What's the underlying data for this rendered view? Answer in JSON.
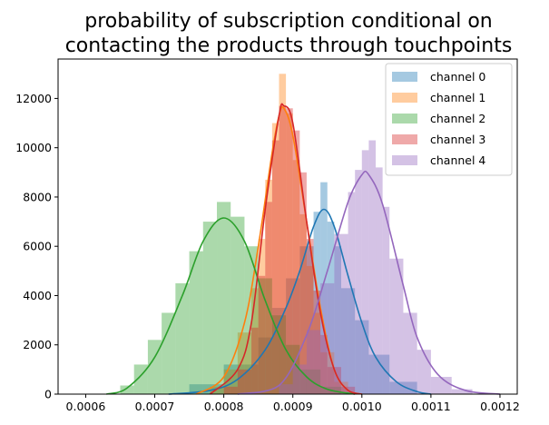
{
  "chart_data": {
    "type": "histogram",
    "title_lines": [
      "probability of subscription conditional on",
      "contacting the products through touchpoints"
    ],
    "xlabel": "",
    "ylabel": "",
    "xlim": [
      0.00056,
      0.001225
    ],
    "ylim": [
      0,
      13600
    ],
    "x_ticks": [
      0.0006,
      0.0007,
      0.0008,
      0.0009,
      0.001,
      0.0011,
      0.0012
    ],
    "x_tick_labels": [
      "0.0006",
      "0.0007",
      "0.0008",
      "0.0009",
      "0.0010",
      "0.0011",
      "0.0012"
    ],
    "y_ticks": [
      0,
      2000,
      4000,
      6000,
      8000,
      10000,
      12000
    ],
    "y_tick_labels": [
      "0",
      "2000",
      "4000",
      "6000",
      "8000",
      "10000",
      "12000"
    ],
    "grid": false,
    "legend_position": "top-right",
    "bar_opacity": 0.4,
    "series": [
      {
        "name": "channel 0",
        "color": "#1f77b4",
        "bins": [
          [
            0.00075,
            0.0008,
            400
          ],
          [
            0.0008,
            0.00085,
            1200
          ],
          [
            0.00085,
            0.00087,
            2300
          ],
          [
            0.00087,
            0.00089,
            3500
          ],
          [
            0.00089,
            0.00091,
            4700
          ],
          [
            0.00091,
            0.00093,
            6000
          ],
          [
            0.00093,
            0.00094,
            7400
          ],
          [
            0.00094,
            0.00095,
            8600
          ],
          [
            0.00095,
            0.00096,
            7000
          ],
          [
            0.00096,
            0.00097,
            6000
          ],
          [
            0.00097,
            0.00099,
            4300
          ],
          [
            0.00099,
            0.00101,
            3000
          ],
          [
            0.00101,
            0.00104,
            1600
          ],
          [
            0.00104,
            0.00108,
            500
          ]
        ],
        "kde": [
          [
            0.00072,
            0
          ],
          [
            0.00078,
            150
          ],
          [
            0.00082,
            600
          ],
          [
            0.00086,
            1800
          ],
          [
            0.00089,
            3500
          ],
          [
            0.00091,
            5000
          ],
          [
            0.00093,
            6800
          ],
          [
            0.000945,
            7500
          ],
          [
            0.00096,
            6800
          ],
          [
            0.00098,
            4800
          ],
          [
            0.001,
            2900
          ],
          [
            0.00102,
            1500
          ],
          [
            0.00105,
            500
          ],
          [
            0.00108,
            100
          ],
          [
            0.0011,
            0
          ]
        ]
      },
      {
        "name": "channel 1",
        "color": "#ff7f0e",
        "bins": [
          [
            0.00078,
            0.0008,
            300
          ],
          [
            0.0008,
            0.00082,
            1000
          ],
          [
            0.00082,
            0.00084,
            2500
          ],
          [
            0.00084,
            0.00085,
            4300
          ],
          [
            0.00085,
            0.00086,
            6300
          ],
          [
            0.00086,
            0.00087,
            8700
          ],
          [
            0.00087,
            0.00088,
            11000
          ],
          [
            0.00088,
            0.00089,
            13000
          ],
          [
            0.00089,
            0.0009,
            11400
          ],
          [
            0.0009,
            0.00091,
            9500
          ],
          [
            0.00091,
            0.00092,
            7300
          ],
          [
            0.00092,
            0.00093,
            5200
          ],
          [
            0.00093,
            0.00094,
            3300
          ],
          [
            0.00094,
            0.00096,
            1700
          ],
          [
            0.00096,
            0.00098,
            500
          ]
        ],
        "kde": [
          [
            0.00076,
            0
          ],
          [
            0.0008,
            700
          ],
          [
            0.00083,
            2900
          ],
          [
            0.00085,
            6000
          ],
          [
            0.00087,
            9800
          ],
          [
            0.00088,
            11300
          ],
          [
            0.000887,
            11600
          ],
          [
            0.0009,
            10500
          ],
          [
            0.00092,
            7000
          ],
          [
            0.00094,
            3500
          ],
          [
            0.00096,
            1000
          ],
          [
            0.00098,
            150
          ],
          [
            0.001,
            0
          ]
        ]
      },
      {
        "name": "channel 2",
        "color": "#2ca02c",
        "bins": [
          [
            0.00065,
            0.00067,
            350
          ],
          [
            0.00067,
            0.00069,
            1200
          ],
          [
            0.00069,
            0.00071,
            2200
          ],
          [
            0.00071,
            0.00073,
            3300
          ],
          [
            0.00073,
            0.00075,
            4500
          ],
          [
            0.00075,
            0.00077,
            5800
          ],
          [
            0.00077,
            0.00079,
            7000
          ],
          [
            0.00079,
            0.00081,
            7800
          ],
          [
            0.00081,
            0.00083,
            7200
          ],
          [
            0.00083,
            0.00085,
            6000
          ],
          [
            0.00085,
            0.00087,
            4700
          ],
          [
            0.00087,
            0.00089,
            3200
          ],
          [
            0.00089,
            0.00091,
            2000
          ],
          [
            0.00091,
            0.00094,
            1000
          ],
          [
            0.00094,
            0.00097,
            300
          ]
        ],
        "kde": [
          [
            0.00063,
            0
          ],
          [
            0.00066,
            250
          ],
          [
            0.0007,
            1500
          ],
          [
            0.00074,
            4000
          ],
          [
            0.00077,
            6200
          ],
          [
            0.0008,
            7150
          ],
          [
            0.00083,
            6200
          ],
          [
            0.00086,
            3800
          ],
          [
            0.00089,
            1800
          ],
          [
            0.00092,
            700
          ],
          [
            0.00095,
            200
          ],
          [
            0.00099,
            0
          ]
        ]
      },
      {
        "name": "channel 3",
        "color": "#d62728",
        "bins": [
          [
            0.0008,
            0.00082,
            300
          ],
          [
            0.00082,
            0.00084,
            1000
          ],
          [
            0.00084,
            0.00085,
            2700
          ],
          [
            0.00085,
            0.00086,
            4800
          ],
          [
            0.00086,
            0.00087,
            7800
          ],
          [
            0.00087,
            0.00088,
            10300
          ],
          [
            0.00088,
            0.00089,
            11700
          ],
          [
            0.00089,
            0.0009,
            11600
          ],
          [
            0.0009,
            0.00091,
            10700
          ],
          [
            0.00091,
            0.00092,
            9000
          ],
          [
            0.00092,
            0.00093,
            6300
          ],
          [
            0.00093,
            0.00094,
            4200
          ],
          [
            0.00094,
            0.00095,
            2400
          ],
          [
            0.00095,
            0.00097,
            1100
          ],
          [
            0.00097,
            0.00099,
            300
          ]
        ],
        "kde": [
          [
            0.00078,
            0
          ],
          [
            0.00082,
            1000
          ],
          [
            0.00084,
            2900
          ],
          [
            0.00086,
            7500
          ],
          [
            0.00088,
            11300
          ],
          [
            0.000887,
            11700
          ],
          [
            0.0009,
            11000
          ],
          [
            0.00092,
            7000
          ],
          [
            0.00094,
            3300
          ],
          [
            0.00096,
            1000
          ],
          [
            0.00098,
            150
          ],
          [
            0.001,
            0
          ]
        ]
      },
      {
        "name": "channel 4",
        "color": "#9467bd",
        "bins": [
          [
            0.00088,
            0.0009,
            400
          ],
          [
            0.0009,
            0.00092,
            1200
          ],
          [
            0.00092,
            0.00094,
            2600
          ],
          [
            0.00094,
            0.00096,
            4500
          ],
          [
            0.00096,
            0.00098,
            6500
          ],
          [
            0.00098,
            0.00099,
            8200
          ],
          [
            0.00099,
            0.001,
            9100
          ],
          [
            0.001,
            0.00101,
            9900
          ],
          [
            0.00101,
            0.00102,
            10300
          ],
          [
            0.00102,
            0.00103,
            9200
          ],
          [
            0.00103,
            0.00104,
            7600
          ],
          [
            0.00104,
            0.00106,
            5500
          ],
          [
            0.00106,
            0.00108,
            3300
          ],
          [
            0.00108,
            0.0011,
            1800
          ],
          [
            0.0011,
            0.00113,
            700
          ],
          [
            0.00113,
            0.00116,
            200
          ]
        ],
        "kde": [
          [
            0.00082,
            0
          ],
          [
            0.00088,
            350
          ],
          [
            0.00092,
            2400
          ],
          [
            0.00095,
            5000
          ],
          [
            0.00098,
            7800
          ],
          [
            0.001,
            8900
          ],
          [
            0.00101,
            8900
          ],
          [
            0.00103,
            7700
          ],
          [
            0.00106,
            4400
          ],
          [
            0.00108,
            2300
          ],
          [
            0.00111,
            800
          ],
          [
            0.00115,
            150
          ],
          [
            0.0012,
            0
          ]
        ]
      }
    ]
  }
}
